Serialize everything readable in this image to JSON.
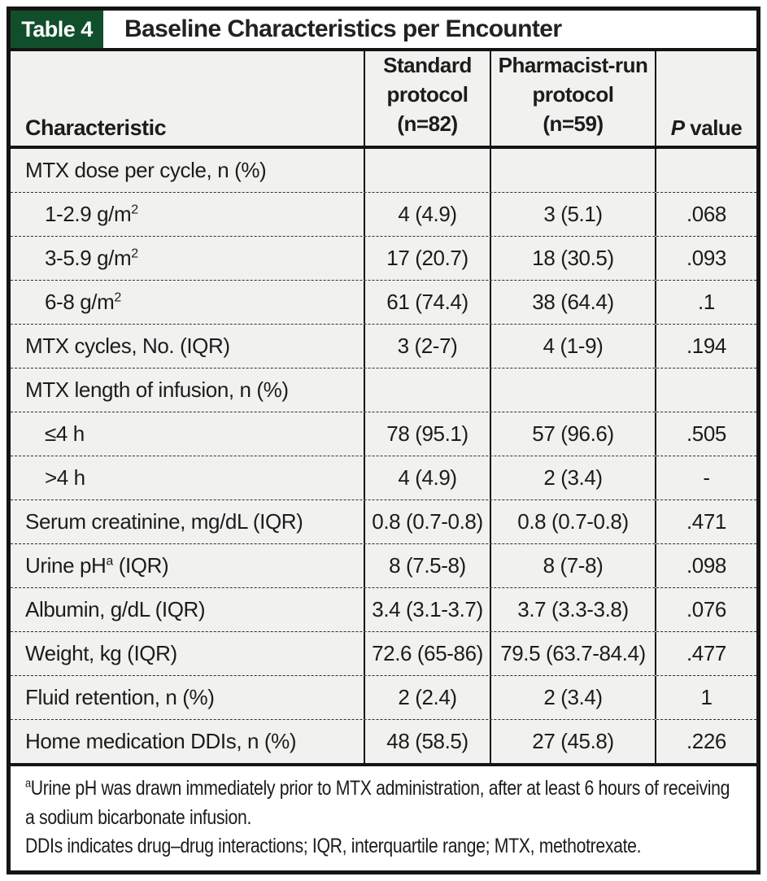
{
  "colors": {
    "accent_green": "#114f2c",
    "row_background": "#f1f1ef",
    "border_black": "#141414"
  },
  "header": {
    "label": "Table 4",
    "title": "Baseline Characteristics per Encounter"
  },
  "columns": {
    "characteristic": "Characteristic",
    "standard": "Standard\nprotocol\n(n=82)",
    "pharmacist": "Pharmacist-run\nprotocol\n(n=59)",
    "p_italic": "P",
    "p_rest": " value"
  },
  "table": {
    "rows": [
      {
        "pre": "MTX dose per cycle, n (%)",
        "sup": "",
        "post": "",
        "indent": false,
        "values": [
          "",
          "",
          ""
        ]
      },
      {
        "pre": "1-2.9 g/m",
        "sup": "2",
        "post": "",
        "indent": true,
        "values": [
          "4 (4.9)",
          "3 (5.1)",
          ".068"
        ]
      },
      {
        "pre": "3-5.9 g/m",
        "sup": "2",
        "post": "",
        "indent": true,
        "values": [
          "17 (20.7)",
          "18 (30.5)",
          ".093"
        ]
      },
      {
        "pre": "6-8 g/m",
        "sup": "2",
        "post": "",
        "indent": true,
        "values": [
          "61 (74.4)",
          "38 (64.4)",
          ".1"
        ]
      },
      {
        "pre": "MTX cycles, No. (IQR)",
        "sup": "",
        "post": "",
        "indent": false,
        "values": [
          "3 (2-7)",
          "4 (1-9)",
          ".194"
        ]
      },
      {
        "pre": "MTX length of infusion, n (%)",
        "sup": "",
        "post": "",
        "indent": false,
        "values": [
          "",
          "",
          ""
        ]
      },
      {
        "pre": "≤4 h",
        "sup": "",
        "post": "",
        "indent": true,
        "values": [
          "78 (95.1)",
          "57 (96.6)",
          ".505"
        ]
      },
      {
        "pre": ">4 h",
        "sup": "",
        "post": "",
        "indent": true,
        "values": [
          "4 (4.9)",
          "2 (3.4)",
          "-"
        ]
      },
      {
        "pre": "Serum creatinine, mg/dL (IQR)",
        "sup": "",
        "post": "",
        "indent": false,
        "values": [
          "0.8 (0.7-0.8)",
          "0.8 (0.7-0.8)",
          ".471"
        ]
      },
      {
        "pre": "Urine pH",
        "sup": "a",
        "post": " (IQR)",
        "indent": false,
        "values": [
          "8 (7.5-8)",
          "8 (7-8)",
          ".098"
        ]
      },
      {
        "pre": "Albumin, g/dL (IQR)",
        "sup": "",
        "post": "",
        "indent": false,
        "values": [
          "3.4 (3.1-3.7)",
          "3.7 (3.3-3.8)",
          ".076"
        ]
      },
      {
        "pre": "Weight, kg (IQR)",
        "sup": "",
        "post": "",
        "indent": false,
        "values": [
          "72.6 (65-86)",
          "79.5 (63.7-84.4)",
          ".477"
        ]
      },
      {
        "pre": "Fluid retention, n (%)",
        "sup": "",
        "post": "",
        "indent": false,
        "values": [
          "2 (2.4)",
          "2 (3.4)",
          "1"
        ]
      },
      {
        "pre": "Home medication DDIs, n (%)",
        "sup": "",
        "post": "",
        "indent": false,
        "values": [
          "48 (58.5)",
          "27 (45.8)",
          ".226"
        ]
      }
    ]
  },
  "footnotes": {
    "a_sup": "a",
    "a_text": "Urine pH was drawn immediately prior to MTX administration, after at least 6 hours of receiving a sodium bicarbonate infusion.",
    "abbreviations": "DDIs indicates drug–drug interactions; IQR, interquartile range; MTX, methotrexate."
  }
}
